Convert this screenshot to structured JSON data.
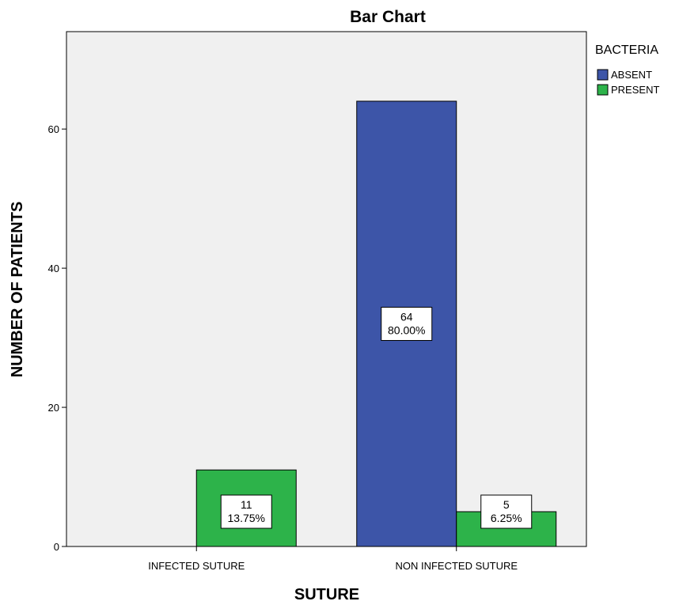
{
  "chart_data": {
    "type": "bar",
    "title": "Bar Chart",
    "xlabel": "SUTURE",
    "ylabel": "NUMBER OF PATIENTS",
    "categories": [
      "INFECTED SUTURE",
      "NON INFECTED SUTURE"
    ],
    "ylim": [
      0,
      74
    ],
    "yticks": [
      0,
      20,
      40,
      60
    ],
    "ytick_labels": [
      "0",
      "20",
      "40",
      "60"
    ],
    "grid": false,
    "legend": {
      "title": "BACTERIA",
      "placement": "right"
    },
    "series": [
      {
        "name": "ABSENT",
        "color": "#3d55a8",
        "values": [
          0,
          64
        ],
        "labels": [
          null,
          [
            "64",
            "80.00%"
          ]
        ]
      },
      {
        "name": "PRESENT",
        "color": "#2db34a",
        "values": [
          11,
          5
        ],
        "labels": [
          [
            "11",
            "13.75%"
          ],
          [
            "5",
            "6.25%"
          ]
        ]
      }
    ]
  }
}
